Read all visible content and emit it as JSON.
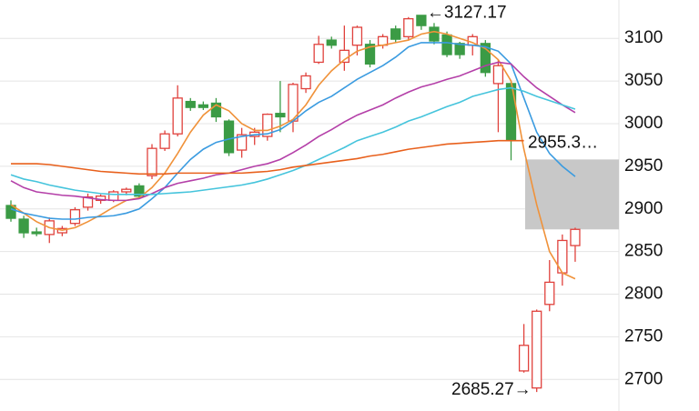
{
  "chart_data": {
    "type": "candlestick",
    "ylim": [
      2663,
      3145
    ],
    "yticks": [
      2700,
      2750,
      2800,
      2850,
      2900,
      2950,
      3000,
      3050,
      3100
    ],
    "grid": true,
    "up_color": "#e0413c",
    "down_color": "#3b9b45",
    "open": [
      2904,
      2888,
      2873,
      2870,
      2872,
      2883,
      2902,
      2910,
      2910,
      2920,
      2927,
      2939,
      2971,
      2988,
      3026,
      3022,
      3024,
      3003,
      2969,
      2985,
      2985,
      3012,
      3003,
      3041,
      3072,
      3098,
      3072,
      3092,
      3093,
      3092,
      3111,
      3102,
      3127,
      3113,
      3104,
      3094,
      3092,
      3094,
      3047,
      3047,
      2710,
      2690,
      2788,
      2825,
      2857
    ],
    "high": [
      2910,
      2892,
      2878,
      2890,
      2880,
      2902,
      2918,
      2917,
      2922,
      2925,
      2930,
      2976,
      2992,
      3045,
      3030,
      3026,
      3030,
      3005,
      2995,
      2995,
      3012,
      3050,
      3048,
      3060,
      3103,
      3102,
      3115,
      3115,
      3098,
      3105,
      3115,
      3125,
      3127.17,
      3118,
      3108,
      3096,
      3105,
      3098,
      3075,
      3050,
      2765,
      2782,
      2840,
      2870,
      2878
    ],
    "low": [
      2885,
      2866,
      2868,
      2860,
      2868,
      2880,
      2898,
      2906,
      2908,
      2916,
      2912,
      2935,
      2968,
      2985,
      3015,
      3016,
      3002,
      2962,
      2960,
      2975,
      2980,
      2990,
      2990,
      3036,
      3070,
      3088,
      3062,
      3080,
      3066,
      3088,
      3095,
      3098,
      3110,
      3093,
      3078,
      3076,
      3080,
      3055,
      2990,
      2957,
      2708,
      2685.27,
      2780,
      2810,
      2838
    ],
    "close": [
      2889,
      2872,
      2871,
      2886,
      2877,
      2899,
      2914,
      2915,
      2920,
      2923,
      2915,
      2971,
      2988,
      3030,
      3019,
      3019,
      3008,
      2966,
      2987,
      2990,
      3011,
      3008,
      3046,
      3056,
      3093,
      3092,
      3086,
      3113,
      3070,
      3102,
      3099,
      3123,
      3115,
      3097,
      3081,
      3081,
      3102,
      3060,
      3068,
      2980,
      2740,
      2780,
      2814,
      2863,
      2876
    ],
    "series": [
      {
        "color": "#f0923a",
        "values": [
          2905,
          2895,
          2885,
          2878,
          2875,
          2878,
          2885,
          2893,
          2902,
          2910,
          2913,
          2925,
          2942,
          2965,
          2990,
          3010,
          3022,
          3015,
          3000,
          2992,
          2992,
          2997,
          3005,
          3022,
          3045,
          3062,
          3075,
          3085,
          3090,
          3092,
          3095,
          3098,
          3105,
          3108,
          3105,
          3100,
          3095,
          3088,
          3075,
          3050,
          2970,
          2905,
          2850,
          2825,
          2818
        ]
      },
      {
        "color": "#3a9be0",
        "values": [
          2900,
          2895,
          2892,
          2889,
          2888,
          2888,
          2890,
          2891,
          2892,
          2895,
          2900,
          2912,
          2925,
          2942,
          2958,
          2970,
          2978,
          2982,
          2985,
          2987,
          2988,
          2993,
          3003,
          3015,
          3025,
          3032,
          3042,
          3052,
          3060,
          3068,
          3078,
          3090,
          3095,
          3095,
          3095,
          3093,
          3092,
          3090,
          3085,
          3070,
          3030,
          2990,
          2965,
          2950,
          2938
        ]
      },
      {
        "color": "#b43fa8",
        "values": [
          2933,
          2925,
          2920,
          2918,
          2916,
          2915,
          2913,
          2911,
          2910,
          2910,
          2912,
          2918,
          2925,
          2930,
          2933,
          2936,
          2940,
          2942,
          2946,
          2950,
          2953,
          2958,
          2966,
          2975,
          2985,
          2993,
          3002,
          3010,
          3016,
          3022,
          3030,
          3037,
          3043,
          3047,
          3052,
          3056,
          3062,
          3068,
          3072,
          3070,
          3055,
          3042,
          3032,
          3022,
          3013
        ]
      },
      {
        "color": "#45c4dc",
        "values": [
          2940,
          2935,
          2932,
          2928,
          2925,
          2922,
          2920,
          2918,
          2917,
          2917,
          2917,
          2917,
          2918,
          2919,
          2920,
          2922,
          2924,
          2926,
          2928,
          2931,
          2935,
          2940,
          2945,
          2951,
          2958,
          2965,
          2972,
          2980,
          2985,
          2990,
          2996,
          3003,
          3008,
          3014,
          3020,
          3025,
          3032,
          3036,
          3040,
          3042,
          3038,
          3032,
          3027,
          3022,
          3017
        ]
      },
      {
        "color": "#e8601c",
        "values": [
          2953,
          2953,
          2953,
          2952,
          2950,
          2948,
          2946,
          2944,
          2943,
          2942,
          2941,
          2941,
          2941,
          2942,
          2942,
          2942,
          2942,
          2942,
          2942,
          2943,
          2944,
          2946,
          2949,
          2951,
          2953,
          2955,
          2957,
          2959,
          2962,
          2964,
          2967,
          2970,
          2972,
          2974,
          2976,
          2977,
          2978,
          2979,
          2980,
          2980,
          2980,
          null,
          null,
          null,
          null
        ]
      }
    ],
    "band": [
      2876,
      2958
    ],
    "band_label": "2955.3…",
    "max_label": "←3127.17",
    "min_label": "2685.27→"
  }
}
